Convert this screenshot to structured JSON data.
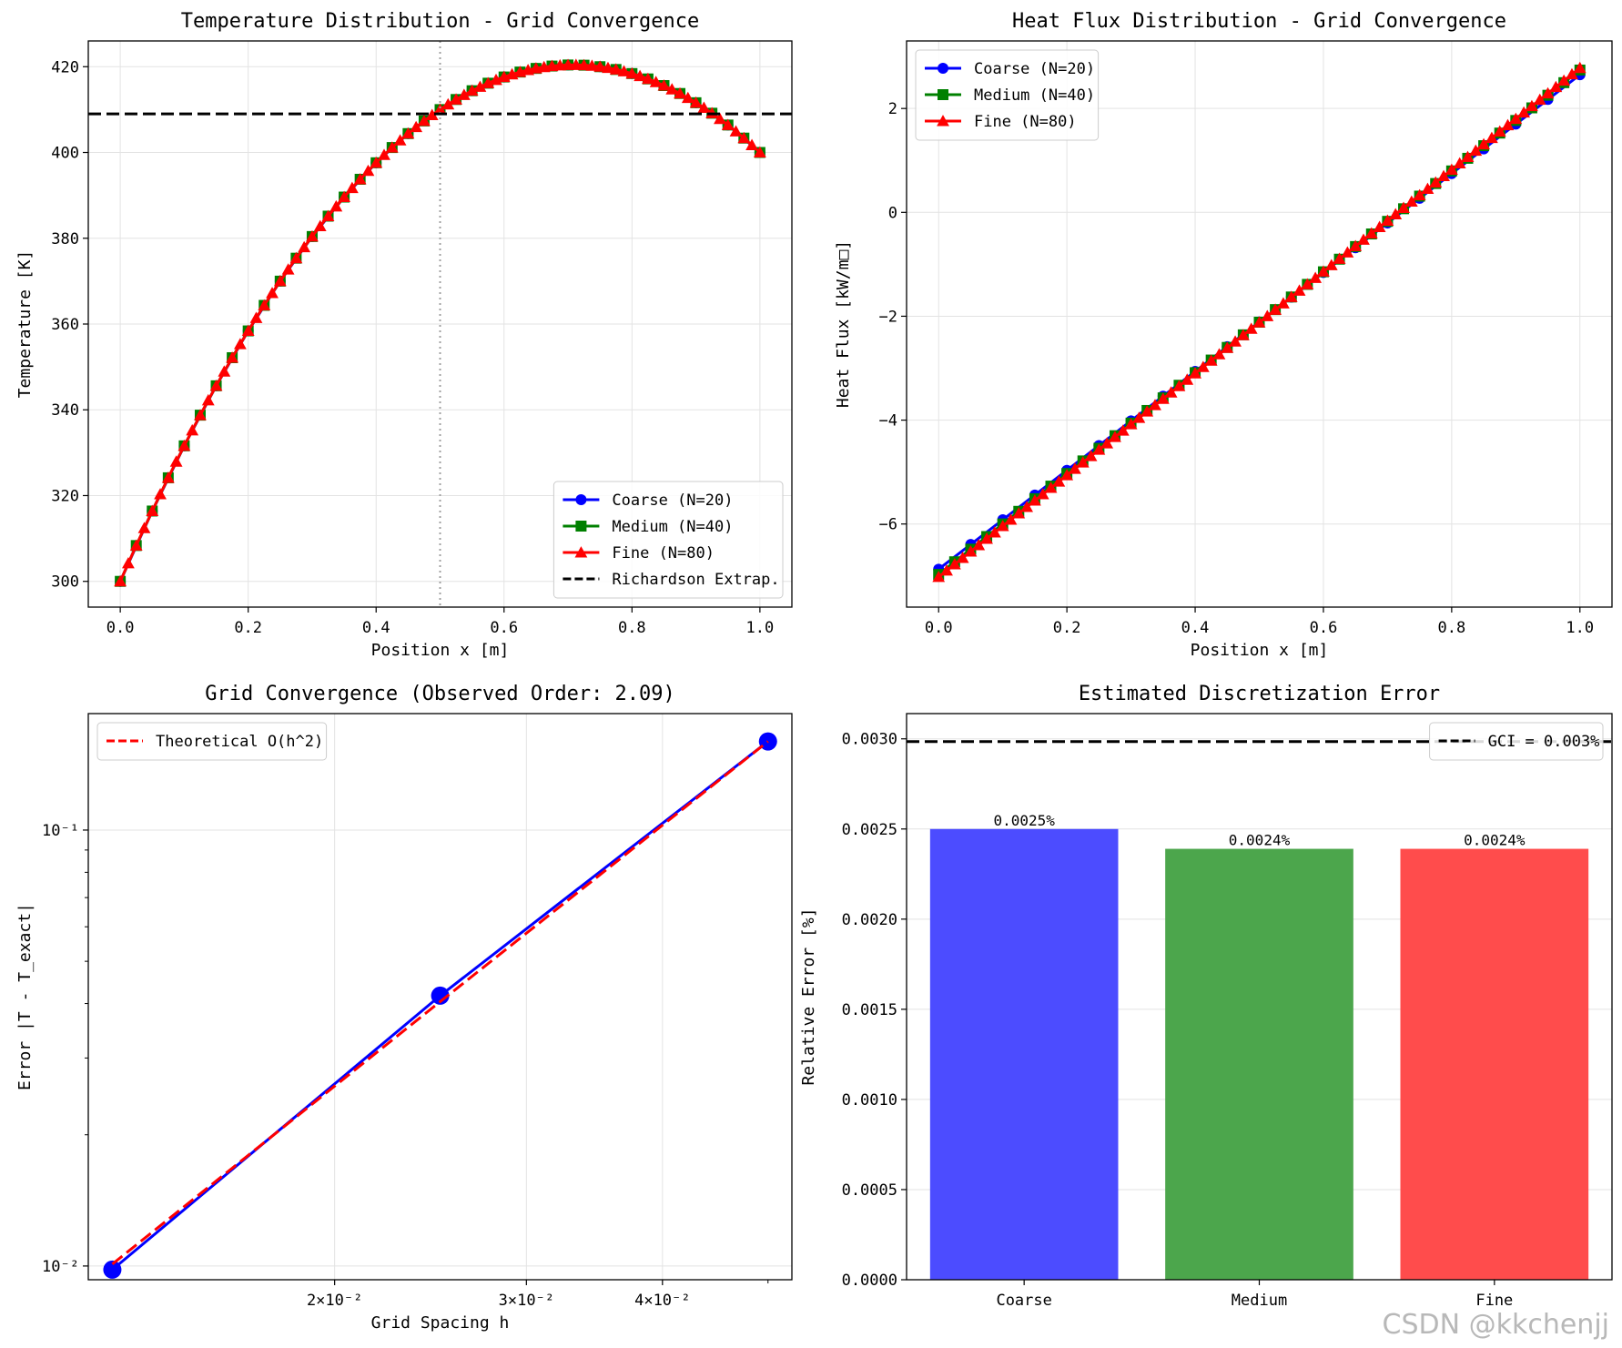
{
  "watermark": "CSDN @kkchenjj",
  "chart_data": [
    {
      "id": "temp",
      "type": "line",
      "title": "Temperature Distribution - Grid Convergence",
      "xlabel": "Position x [m]",
      "ylabel": "Temperature [K]",
      "xlim": [
        -0.05,
        1.05
      ],
      "ylim": [
        294,
        426
      ],
      "xticks": [
        0.0,
        0.2,
        0.4,
        0.6,
        0.8,
        1.0
      ],
      "xtick_labels": [
        "0.0",
        "0.2",
        "0.4",
        "0.6",
        "0.8",
        "1.0"
      ],
      "yticks": [
        300,
        320,
        340,
        360,
        380,
        400,
        420
      ],
      "ytick_labels": [
        "300",
        "320",
        "340",
        "360",
        "380",
        "400",
        "420"
      ],
      "grid": true,
      "legend": "lower-right",
      "series": [
        {
          "name": "Coarse (N=20)",
          "color": "#0000ff",
          "marker": "circle",
          "model": {
            "type": "quad",
            "a": 300,
            "b": 340,
            "c": -240
          },
          "n": 21
        },
        {
          "name": "Medium (N=40)",
          "color": "#008000",
          "marker": "square",
          "model": {
            "type": "quad",
            "a": 300,
            "b": 340,
            "c": -240
          },
          "n": 41
        },
        {
          "name": "Fine (N=80)",
          "color": "#ff0000",
          "marker": "triangle",
          "model": {
            "type": "quad",
            "a": 300,
            "b": 340,
            "c": -240
          },
          "n": 81
        }
      ],
      "hline": {
        "name": "Richardson Extrap.",
        "y": 409,
        "color": "#000000",
        "style": "dashed"
      },
      "vline": {
        "x": 0.5,
        "color": "#a0a0a0",
        "style": "dotted"
      }
    },
    {
      "id": "flux",
      "type": "line",
      "title": "Heat Flux Distribution - Grid Convergence",
      "xlabel": "Position x [m]",
      "ylabel": "Heat Flux [kW/m□]",
      "xlim": [
        -0.05,
        1.05
      ],
      "ylim": [
        -7.6,
        3.3
      ],
      "xticks": [
        0.0,
        0.2,
        0.4,
        0.6,
        0.8,
        1.0
      ],
      "xtick_labels": [
        "0.0",
        "0.2",
        "0.4",
        "0.6",
        "0.8",
        "1.0"
      ],
      "yticks": [
        -6,
        -4,
        -2,
        0,
        2
      ],
      "ytick_labels": [
        "−6",
        "−4",
        "−2",
        "0",
        "2"
      ],
      "grid": true,
      "legend": "upper-left",
      "series": [
        {
          "name": "Coarse (N=20)",
          "color": "#0000ff",
          "marker": "circle",
          "model": {
            "type": "lin",
            "a": -6.87,
            "b": 9.52
          },
          "n": 21
        },
        {
          "name": "Medium (N=40)",
          "color": "#008000",
          "marker": "square",
          "model": {
            "type": "lin",
            "a": -6.97,
            "b": 9.71
          },
          "n": 41
        },
        {
          "name": "Fine (N=80)",
          "color": "#ff0000",
          "marker": "triangle",
          "model": {
            "type": "lin",
            "a": -7.02,
            "b": 9.8
          },
          "n": 81
        }
      ]
    },
    {
      "id": "conv",
      "type": "line",
      "scale": "log-log",
      "title": "Grid Convergence (Observed Order: 2.09)",
      "xlabel": "Grid Spacing h",
      "ylabel": "Error |T - T_exact|",
      "xlim": [
        0.01188,
        0.05259
      ],
      "ylim": [
        0.0093,
        0.185
      ],
      "xticks": [
        0.02,
        0.03,
        0.04
      ],
      "xtick_labels": [
        "2×10⁻²",
        "3×10⁻²",
        "4×10⁻²"
      ],
      "xticks_minor": [
        0.05
      ],
      "yticks": [
        0.01,
        0.1
      ],
      "ytick_labels": [
        "10⁻²",
        "10⁻¹"
      ],
      "yticks_minor": [
        0.02,
        0.03,
        0.04,
        0.05,
        0.06,
        0.07,
        0.08,
        0.09
      ],
      "grid": true,
      "legend": "upper-left",
      "series": [
        {
          "name": "",
          "color": "#0000ff",
          "marker": "circle",
          "style": "solid",
          "x": [
            0.0125,
            0.025,
            0.05
          ],
          "y": [
            0.00981,
            0.0417,
            0.1597
          ]
        },
        {
          "name": "Theoretical O(h^2)",
          "color": "#ff0000",
          "marker": "none",
          "style": "dashed",
          "x": [
            0.0125,
            0.025,
            0.05
          ],
          "y": [
            0.0101,
            0.0404,
            0.1597
          ]
        }
      ]
    },
    {
      "id": "err",
      "type": "bar",
      "title": "Estimated Discretization Error",
      "xlabel": "",
      "ylabel": "Relative Error [%]",
      "categories": [
        "Coarse",
        "Medium",
        "Fine"
      ],
      "values": [
        0.0025,
        0.00239,
        0.00239
      ],
      "value_labels": [
        "0.0025%",
        "0.0024%",
        "0.0024%"
      ],
      "colors": [
        "#4c4cff",
        "#4ca64c",
        "#ff4c4c"
      ],
      "ylim": [
        0,
        0.00314
      ],
      "yticks": [
        0,
        0.0005,
        0.001,
        0.0015,
        0.002,
        0.0025,
        0.003
      ],
      "ytick_labels": [
        "0.0000",
        "0.0005",
        "0.0010",
        "0.0015",
        "0.0020",
        "0.0025",
        "0.0030"
      ],
      "grid": true,
      "legend": "upper-right",
      "hline": {
        "name": "GCI = 0.003%",
        "y": 0.002985,
        "color": "#000000",
        "style": "dashed"
      }
    }
  ]
}
